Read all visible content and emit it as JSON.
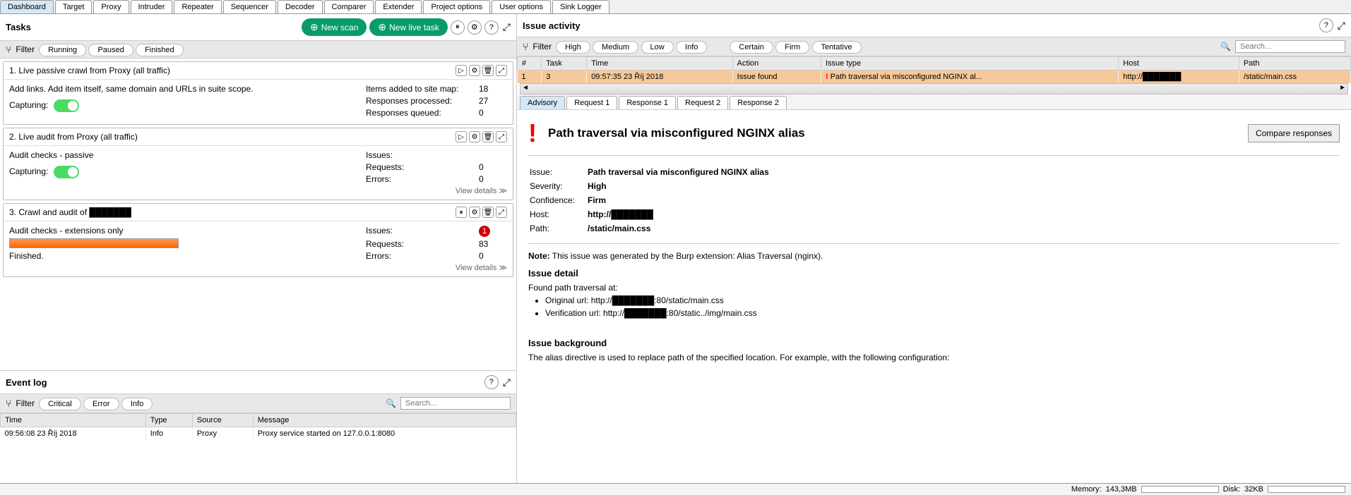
{
  "mainTabs": [
    "Dashboard",
    "Target",
    "Proxy",
    "Intruder",
    "Repeater",
    "Sequencer",
    "Decoder",
    "Comparer",
    "Extender",
    "Project options",
    "User options",
    "Sink Logger"
  ],
  "activeMainTab": 0,
  "tasks": {
    "title": "Tasks",
    "newScan": "New scan",
    "newLiveTask": "New live task",
    "filterLabel": "Filter",
    "filters": [
      "Running",
      "Paused",
      "Finished"
    ],
    "cards": [
      {
        "title": "1. Live passive crawl from Proxy (all traffic)",
        "desc": "Add links. Add item itself, same domain and URLs in suite scope.",
        "capturing": "Capturing:",
        "toggle": true,
        "stats": [
          {
            "label": "Items added to site map:",
            "val": "18"
          },
          {
            "label": "Responses processed:",
            "val": "27"
          },
          {
            "label": "Responses queued:",
            "val": "0"
          }
        ],
        "icons": [
          "play",
          "gear",
          "trash",
          "expand"
        ]
      },
      {
        "title": "2. Live audit from Proxy (all traffic)",
        "desc": "Audit checks - passive",
        "capturing": "Capturing:",
        "toggle": true,
        "stats": [
          {
            "label": "Issues:",
            "val": ""
          },
          {
            "label": "Requests:",
            "val": "0"
          },
          {
            "label": "Errors:",
            "val": "0"
          }
        ],
        "viewDetails": "View details ≫",
        "icons": [
          "play",
          "gear",
          "trash",
          "expand"
        ]
      },
      {
        "title": "3. Crawl and audit of ███████",
        "desc": "Audit checks - extensions only",
        "progress": 100,
        "finished": "Finished.",
        "stats": [
          {
            "label": "Issues:",
            "val": "",
            "badge": "1"
          },
          {
            "label": "Requests:",
            "val": "83"
          },
          {
            "label": "Errors:",
            "val": "0"
          }
        ],
        "viewDetails": "View details ≫",
        "icons": [
          "pause",
          "gear",
          "trash",
          "expand"
        ]
      }
    ]
  },
  "eventLog": {
    "title": "Event log",
    "filterLabel": "Filter",
    "filters": [
      "Critical",
      "Error",
      "Info"
    ],
    "searchPlaceholder": "Search...",
    "columns": [
      "Time",
      "Type",
      "Source",
      "Message"
    ],
    "rows": [
      {
        "time": "09:56:08 23 Říj 2018",
        "type": "Info",
        "source": "Proxy",
        "message": "Proxy service started on 127.0.0.1:8080"
      }
    ]
  },
  "issueActivity": {
    "title": "Issue activity",
    "filterLabel": "Filter",
    "sevFilters": [
      "High",
      "Medium",
      "Low",
      "Info"
    ],
    "confFilters": [
      "Certain",
      "Firm",
      "Tentative"
    ],
    "searchPlaceholder": "Search...",
    "columns": [
      "#",
      "Task",
      "Time",
      "Action",
      "Issue type",
      "Host",
      "Path"
    ],
    "rows": [
      {
        "num": "1",
        "task": "3",
        "time": "09:57:35 23 Říj 2018",
        "action": "Issue found",
        "issueType": "Path traversal via misconfigured NGINX al...",
        "host": "http://███████",
        "path": "/static/main.css"
      }
    ]
  },
  "subTabs": [
    "Advisory",
    "Request 1",
    "Response 1",
    "Request 2",
    "Response 2"
  ],
  "activeSubTab": 0,
  "advisory": {
    "title": "Path traversal via misconfigured NGINX alias",
    "compareBtn": "Compare responses",
    "meta": {
      "Issue:": "Path traversal via misconfigured NGINX alias",
      "Severity:": "High",
      "Confidence:": "Firm",
      "Host:": "http://███████",
      "Path:": "/static/main.css"
    },
    "noteLabel": "Note:",
    "noteText": "This issue was generated by the Burp extension: Alias Traversal (nginx).",
    "issueDetailHeading": "Issue detail",
    "issueDetailText": "Found path traversal at:",
    "urls": [
      "Original url: http://███████:80/static/main.css",
      "Verification url: http://███████:80/static../img/main.css"
    ],
    "bgHeading": "Issue background",
    "bgText": "The alias directive is used to replace path of the specified location. For example, with the following configuration:"
  },
  "statusBar": {
    "memLabel": "Memory:",
    "memVal": "143,3MB",
    "diskLabel": "Disk:",
    "diskVal": "32KB"
  },
  "colors": {
    "green": "#0a9b6c",
    "orange": "#ff6600",
    "rowHighlight": "#f7c89a",
    "red": "#c00"
  }
}
